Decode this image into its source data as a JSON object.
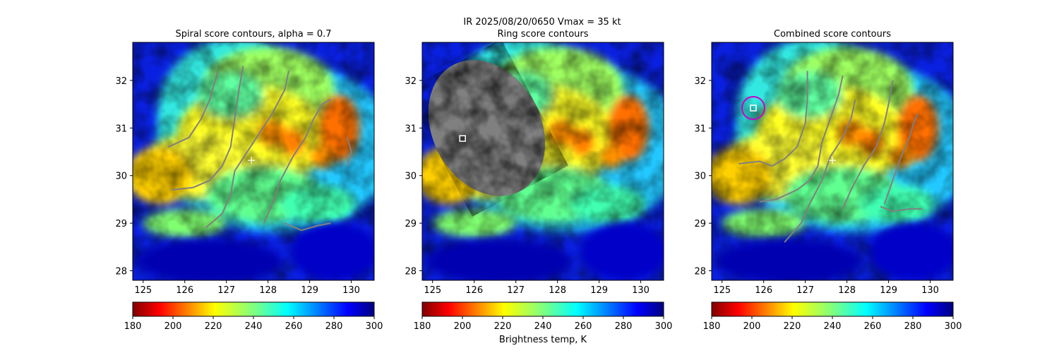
{
  "figure": {
    "suptitle_line1": "IR  2025/08/20/0650    Vmax = 35 kt",
    "colorbar_label": "Brightness temp, K"
  },
  "colors": {
    "background_cmap": "jet_r",
    "contour": "#808080",
    "center_marker": "#ffffff",
    "best_estimate_marker": "#ffffff",
    "combined_circle": "#cc00cc"
  },
  "chart_data": [
    {
      "type": "heatmap",
      "title": "Spiral score contours, alpha =  0.7",
      "x_ticks": [
        "125",
        "126",
        "127",
        "128",
        "129",
        "130"
      ],
      "y_ticks": [
        "28",
        "29",
        "30",
        "31",
        "32"
      ],
      "xlim": [
        124.75,
        130.55
      ],
      "ylim": [
        27.8,
        32.8
      ],
      "first_guess_center": {
        "lon": 127.6,
        "lat": 30.32
      },
      "contours": [
        [
          [
            125.6,
            30.6
          ],
          [
            126.1,
            30.8
          ],
          [
            126.4,
            31.2
          ],
          [
            126.6,
            31.6
          ],
          [
            126.7,
            31.9
          ],
          [
            126.8,
            32.2
          ]
        ],
        [
          [
            125.7,
            29.7
          ],
          [
            126.2,
            29.75
          ],
          [
            126.6,
            29.9
          ],
          [
            126.9,
            30.2
          ],
          [
            127.1,
            30.6
          ],
          [
            127.2,
            31.2
          ],
          [
            127.3,
            31.8
          ],
          [
            127.4,
            32.3
          ]
        ],
        [
          [
            126.5,
            28.9
          ],
          [
            126.9,
            29.2
          ],
          [
            127.1,
            29.6
          ],
          [
            127.2,
            30.1
          ],
          [
            127.5,
            30.5
          ],
          [
            127.8,
            30.9
          ],
          [
            128.1,
            31.3
          ],
          [
            128.4,
            31.8
          ],
          [
            128.5,
            32.2
          ]
        ],
        [
          [
            127.9,
            29.0
          ],
          [
            128.1,
            29.4
          ],
          [
            128.3,
            29.9
          ],
          [
            128.6,
            30.4
          ],
          [
            128.9,
            30.8
          ],
          [
            129.1,
            31.2
          ],
          [
            129.3,
            31.5
          ],
          [
            129.5,
            31.6
          ]
        ],
        [
          [
            128.4,
            29.0
          ],
          [
            128.8,
            28.85
          ],
          [
            129.2,
            28.95
          ],
          [
            129.5,
            29.0
          ]
        ],
        [
          [
            129.9,
            30.2
          ],
          [
            130.0,
            30.5
          ],
          [
            129.9,
            30.8
          ]
        ]
      ],
      "colorbar": {
        "ticks": [
          "180",
          "200",
          "220",
          "240",
          "260",
          "280",
          "300"
        ],
        "range": [
          180,
          300
        ]
      }
    },
    {
      "type": "heatmap",
      "title": "Ring score contours",
      "x_ticks": [
        "125",
        "126",
        "127",
        "128",
        "129",
        "130"
      ],
      "y_ticks": [
        "28",
        "29",
        "30",
        "31",
        "32"
      ],
      "xlim": [
        124.75,
        130.55
      ],
      "ylim": [
        27.8,
        32.8
      ],
      "best_estimate": {
        "lon": 125.72,
        "lat": 30.78
      },
      "ring_region": {
        "lon_min": 125.0,
        "lon_max": 127.6,
        "lat_min": 29.5,
        "lat_max": 32.5
      },
      "colorbar": {
        "ticks": [
          "180",
          "200",
          "220",
          "240",
          "260",
          "280",
          "300"
        ],
        "range": [
          180,
          300
        ]
      }
    },
    {
      "type": "heatmap",
      "title": "Combined score contours",
      "x_ticks": [
        "125",
        "126",
        "127",
        "128",
        "129",
        "130"
      ],
      "y_ticks": [
        "28",
        "29",
        "30",
        "31",
        "32"
      ],
      "xlim": [
        124.75,
        130.55
      ],
      "ylim": [
        27.8,
        32.8
      ],
      "first_guess_center": {
        "lon": 127.65,
        "lat": 30.32
      },
      "best_estimate": {
        "lon": 125.75,
        "lat": 31.42
      },
      "contours": [
        [
          [
            125.4,
            30.25
          ],
          [
            125.9,
            30.3
          ],
          [
            126.2,
            30.2
          ],
          [
            126.5,
            30.35
          ],
          [
            126.8,
            30.6
          ],
          [
            127.0,
            31.1
          ],
          [
            127.05,
            31.6
          ],
          [
            127.05,
            32.2
          ]
        ],
        [
          [
            125.9,
            29.45
          ],
          [
            126.3,
            29.5
          ],
          [
            126.8,
            29.7
          ],
          [
            127.1,
            29.9
          ],
          [
            127.3,
            30.2
          ],
          [
            127.4,
            30.7
          ],
          [
            127.6,
            31.2
          ],
          [
            127.8,
            31.7
          ],
          [
            127.9,
            32.1
          ]
        ],
        [
          [
            126.5,
            28.6
          ],
          [
            126.9,
            29.0
          ],
          [
            127.1,
            29.4
          ],
          [
            127.4,
            29.9
          ],
          [
            127.6,
            30.4
          ],
          [
            127.9,
            30.8
          ],
          [
            128.1,
            31.2
          ],
          [
            128.2,
            31.6
          ]
        ],
        [
          [
            127.9,
            29.3
          ],
          [
            128.1,
            29.7
          ],
          [
            128.4,
            30.2
          ],
          [
            128.7,
            30.6
          ],
          [
            128.9,
            31.1
          ],
          [
            129.0,
            31.5
          ],
          [
            129.1,
            32.0
          ]
        ],
        [
          [
            128.9,
            29.4
          ],
          [
            129.1,
            29.9
          ],
          [
            129.3,
            30.4
          ],
          [
            129.5,
            30.8
          ],
          [
            129.6,
            31.1
          ],
          [
            129.7,
            31.3
          ]
        ],
        [
          [
            128.8,
            29.35
          ],
          [
            129.1,
            29.25
          ],
          [
            129.5,
            29.3
          ],
          [
            129.8,
            29.3
          ]
        ]
      ],
      "colorbar": {
        "ticks": [
          "180",
          "200",
          "220",
          "240",
          "260",
          "280",
          "300"
        ],
        "range": [
          180,
          300
        ]
      }
    }
  ]
}
